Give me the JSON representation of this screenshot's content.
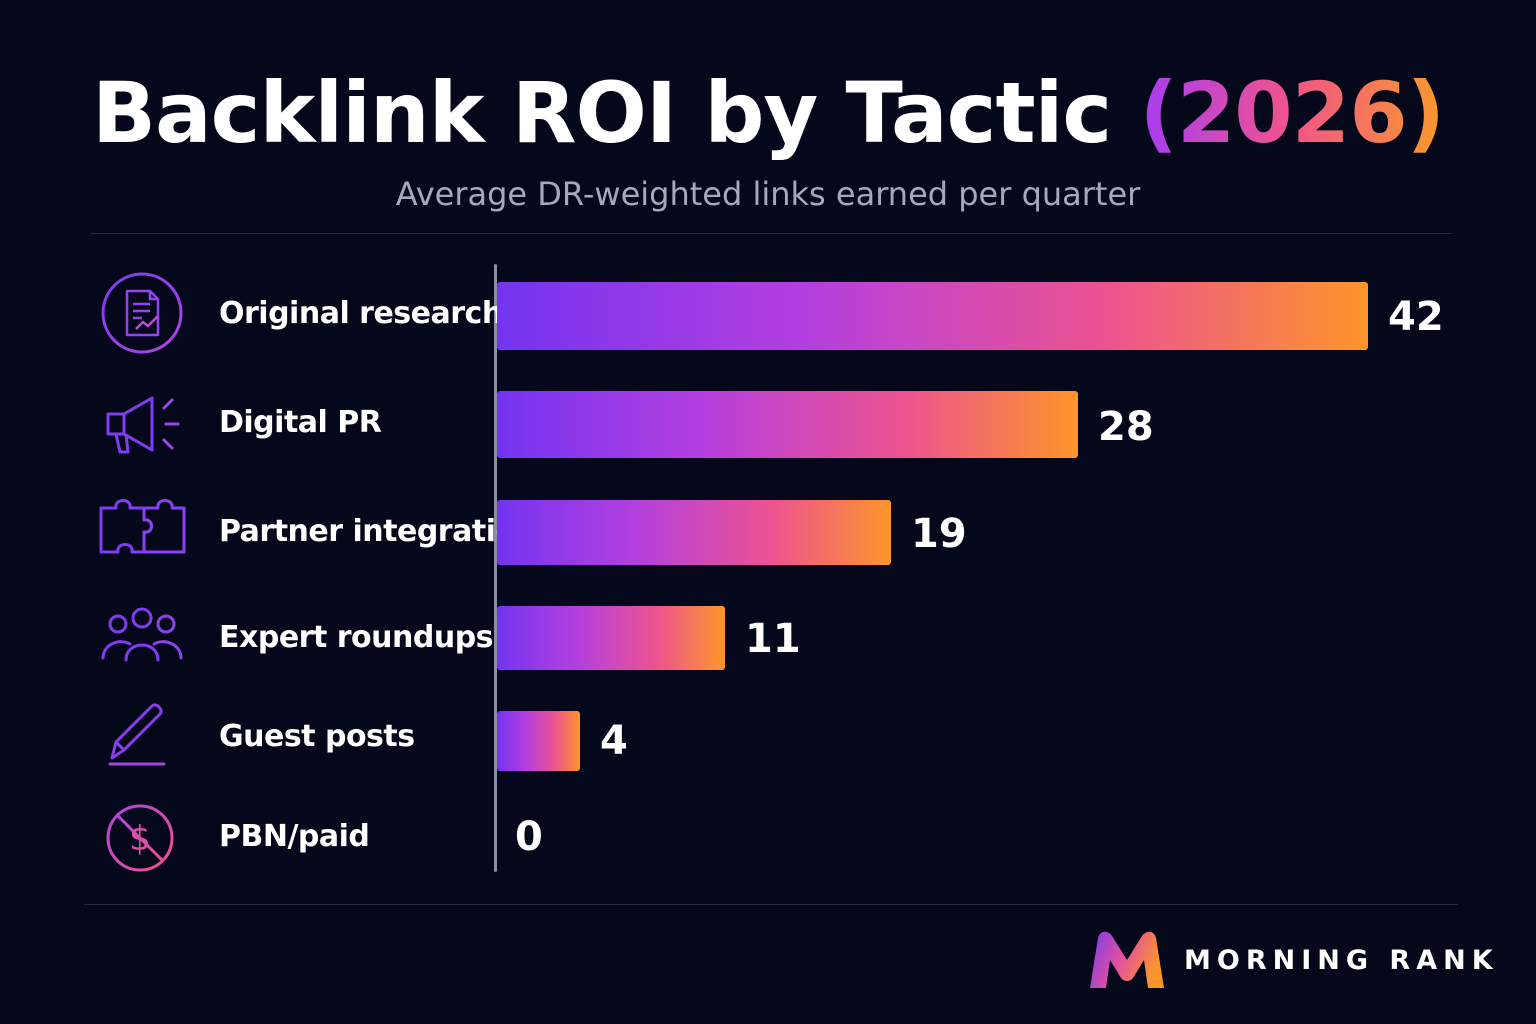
{
  "header": {
    "title_main": "Backlink ROI by Tactic",
    "title_accent": "(2026)",
    "subtitle": "Average DR-weighted links earned per quarter"
  },
  "chart_data": {
    "type": "bar",
    "orientation": "horizontal",
    "title": "Backlink ROI by Tactic (2026)",
    "subtitle": "Average DR-weighted links earned per quarter",
    "categories": [
      "Original research",
      "Digital PR",
      "Partner integrations",
      "Expert roundups",
      "Guest posts",
      "PBN/paid"
    ],
    "values": [
      42,
      28,
      19,
      11,
      4,
      0
    ],
    "value_labels": [
      "42",
      "28",
      "19",
      "11",
      "4",
      "0"
    ],
    "icons": [
      "document-chart-icon",
      "megaphone-icon",
      "puzzle-icon",
      "people-group-icon",
      "pencil-icon",
      "no-dollar-icon"
    ],
    "xlim": [
      0,
      42
    ],
    "grid": false,
    "colors": {
      "gradient_start": "#7434f0",
      "gradient_mid": "#ec5390",
      "gradient_end": "#fd952a"
    }
  },
  "brand": {
    "name": "MORNING RANK",
    "logo_icon": "m-logo-icon"
  }
}
